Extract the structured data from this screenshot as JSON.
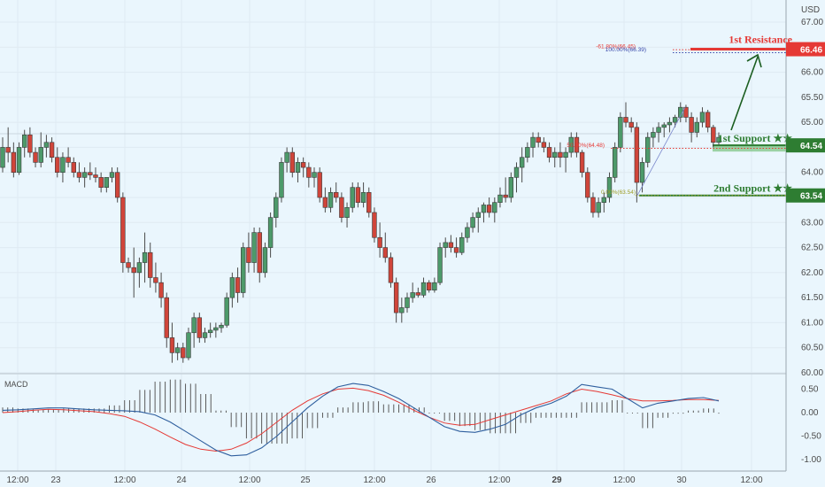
{
  "chart_data": {
    "type": "candlestick",
    "currency_label": "USD",
    "price_axis": {
      "ylim": [
        59.9,
        67.5
      ],
      "ticks": [
        "67.00",
        "66.50",
        "66.00",
        "65.50",
        "65.00",
        "64.50",
        "64.00",
        "63.50",
        "63.00",
        "62.50",
        "62.00",
        "61.50",
        "61.00",
        "60.50",
        "60.00"
      ]
    },
    "time_axis": {
      "labels": [
        "12:00",
        "23",
        "12:00",
        "24",
        "12:00",
        "25",
        "12:00",
        "26",
        "12:00",
        "29",
        "12:00",
        "30",
        "12:00"
      ],
      "bold": [
        "29"
      ]
    },
    "ohlc": [
      [
        64.1,
        64.7,
        64.0,
        64.5
      ],
      [
        64.5,
        64.9,
        64.2,
        64.4
      ],
      [
        64.4,
        64.6,
        63.9,
        64.0
      ],
      [
        64.0,
        64.6,
        63.95,
        64.5
      ],
      [
        64.5,
        64.85,
        64.3,
        64.75
      ],
      [
        64.75,
        64.9,
        64.3,
        64.4
      ],
      [
        64.4,
        64.5,
        64.1,
        64.2
      ],
      [
        64.2,
        64.8,
        64.1,
        64.5
      ],
      [
        64.5,
        64.75,
        64.3,
        64.6
      ],
      [
        64.6,
        64.7,
        64.2,
        64.3
      ],
      [
        64.3,
        64.5,
        63.9,
        64.0
      ],
      [
        64.0,
        64.4,
        63.8,
        64.3
      ],
      [
        64.3,
        64.5,
        64.1,
        64.2
      ],
      [
        64.2,
        64.3,
        63.9,
        64.0
      ],
      [
        64.0,
        64.2,
        63.8,
        63.9
      ],
      [
        63.9,
        64.1,
        63.7,
        64.0
      ],
      [
        64.0,
        64.2,
        63.85,
        63.95
      ],
      [
        63.95,
        64.1,
        63.8,
        63.9
      ],
      [
        63.9,
        64.0,
        63.6,
        63.7
      ],
      [
        63.7,
        63.9,
        63.6,
        63.9
      ],
      [
        63.9,
        64.1,
        63.8,
        64.0
      ],
      [
        64.0,
        64.1,
        63.4,
        63.5
      ],
      [
        63.5,
        63.6,
        62.0,
        62.2
      ],
      [
        62.2,
        62.3,
        62.0,
        62.1
      ],
      [
        62.1,
        62.5,
        61.5,
        62.0
      ],
      [
        62.0,
        62.3,
        61.7,
        62.2
      ],
      [
        62.2,
        62.8,
        61.8,
        62.4
      ],
      [
        62.4,
        62.6,
        61.7,
        61.9
      ],
      [
        61.9,
        62.2,
        61.6,
        61.8
      ],
      [
        61.8,
        62.0,
        61.3,
        61.5
      ],
      [
        61.5,
        61.6,
        60.5,
        60.7
      ],
      [
        60.7,
        61.0,
        60.2,
        60.4
      ],
      [
        60.4,
        60.6,
        60.25,
        60.5
      ],
      [
        60.5,
        60.6,
        60.2,
        60.3
      ],
      [
        60.3,
        60.9,
        60.25,
        60.8
      ],
      [
        60.8,
        61.2,
        60.5,
        61.1
      ],
      [
        61.1,
        61.2,
        60.6,
        60.7
      ],
      [
        60.7,
        60.9,
        60.6,
        60.8
      ],
      [
        60.8,
        61.0,
        60.7,
        60.85
      ],
      [
        60.85,
        61.0,
        60.7,
        60.9
      ],
      [
        60.9,
        61.0,
        60.8,
        60.95
      ],
      [
        60.95,
        61.6,
        60.9,
        61.5
      ],
      [
        61.5,
        62.0,
        61.3,
        61.9
      ],
      [
        61.9,
        62.1,
        61.4,
        61.6
      ],
      [
        61.6,
        62.6,
        61.5,
        62.5
      ],
      [
        62.5,
        62.8,
        62.0,
        62.2
      ],
      [
        62.2,
        62.9,
        62.0,
        62.8
      ],
      [
        62.8,
        62.9,
        61.8,
        62.0
      ],
      [
        62.0,
        62.6,
        61.9,
        62.5
      ],
      [
        62.5,
        63.2,
        62.3,
        63.1
      ],
      [
        63.1,
        63.6,
        62.9,
        63.5
      ],
      [
        63.5,
        64.3,
        63.4,
        64.2
      ],
      [
        64.2,
        64.5,
        64.0,
        64.4
      ],
      [
        64.4,
        64.5,
        63.9,
        64.0
      ],
      [
        64.0,
        64.3,
        63.8,
        64.2
      ],
      [
        64.2,
        64.3,
        63.9,
        64.1
      ],
      [
        64.1,
        64.2,
        63.7,
        63.9
      ],
      [
        63.9,
        64.1,
        63.7,
        64.0
      ],
      [
        64.0,
        64.1,
        63.4,
        63.5
      ],
      [
        63.5,
        63.7,
        63.2,
        63.3
      ],
      [
        63.3,
        63.7,
        63.2,
        63.6
      ],
      [
        63.6,
        63.8,
        63.4,
        63.5
      ],
      [
        63.5,
        63.6,
        63.0,
        63.1
      ],
      [
        63.1,
        63.4,
        62.9,
        63.3
      ],
      [
        63.3,
        63.8,
        63.2,
        63.7
      ],
      [
        63.7,
        63.8,
        63.3,
        63.4
      ],
      [
        63.4,
        63.8,
        63.3,
        63.6
      ],
      [
        63.6,
        63.7,
        63.1,
        63.2
      ],
      [
        63.2,
        63.3,
        62.6,
        62.7
      ],
      [
        62.7,
        63.0,
        62.3,
        62.5
      ],
      [
        62.5,
        62.8,
        62.2,
        62.3
      ],
      [
        62.3,
        62.4,
        61.7,
        61.8
      ],
      [
        61.8,
        61.9,
        61.0,
        61.2
      ],
      [
        61.2,
        61.5,
        61.0,
        61.3
      ],
      [
        61.3,
        61.6,
        61.2,
        61.5
      ],
      [
        61.5,
        61.8,
        61.4,
        61.6
      ],
      [
        61.6,
        61.7,
        61.5,
        61.55
      ],
      [
        61.55,
        61.9,
        61.5,
        61.8
      ],
      [
        61.8,
        61.85,
        61.6,
        61.65
      ],
      [
        61.65,
        61.9,
        61.6,
        61.8
      ],
      [
        61.8,
        62.6,
        61.75,
        62.5
      ],
      [
        62.5,
        62.7,
        62.3,
        62.6
      ],
      [
        62.6,
        62.75,
        62.4,
        62.5
      ],
      [
        62.5,
        62.7,
        62.3,
        62.4
      ],
      [
        62.4,
        62.8,
        62.35,
        62.7
      ],
      [
        62.7,
        63.0,
        62.6,
        62.9
      ],
      [
        62.9,
        63.2,
        62.8,
        63.1
      ],
      [
        63.1,
        63.3,
        62.8,
        63.2
      ],
      [
        63.2,
        63.4,
        63.0,
        63.35
      ],
      [
        63.35,
        63.5,
        63.1,
        63.2
      ],
      [
        63.2,
        63.5,
        63.0,
        63.4
      ],
      [
        63.4,
        63.7,
        63.3,
        63.55
      ],
      [
        63.55,
        63.9,
        63.4,
        63.5
      ],
      [
        63.5,
        64.0,
        63.4,
        63.9
      ],
      [
        63.9,
        64.2,
        63.6,
        64.1
      ],
      [
        64.1,
        64.5,
        63.8,
        64.3
      ],
      [
        64.3,
        64.6,
        64.2,
        64.5
      ],
      [
        64.5,
        64.8,
        64.3,
        64.7
      ],
      [
        64.7,
        64.8,
        64.5,
        64.6
      ],
      [
        64.6,
        64.7,
        64.4,
        64.5
      ],
      [
        64.5,
        64.6,
        64.2,
        64.3
      ],
      [
        64.3,
        64.5,
        64.1,
        64.4
      ],
      [
        64.4,
        64.6,
        64.1,
        64.3
      ],
      [
        64.3,
        64.5,
        64.0,
        64.4
      ],
      [
        64.4,
        64.8,
        64.3,
        64.7
      ],
      [
        64.7,
        64.8,
        64.3,
        64.4
      ],
      [
        64.4,
        64.45,
        63.9,
        64.0
      ],
      [
        64.0,
        64.1,
        63.4,
        63.5
      ],
      [
        63.5,
        63.6,
        63.1,
        63.2
      ],
      [
        63.2,
        63.5,
        63.1,
        63.4
      ],
      [
        63.4,
        63.6,
        63.2,
        63.5
      ],
      [
        63.5,
        64.0,
        63.4,
        63.9
      ],
      [
        63.9,
        64.6,
        63.8,
        64.5
      ],
      [
        64.5,
        65.2,
        64.4,
        65.1
      ],
      [
        65.1,
        65.4,
        64.9,
        65.0
      ],
      [
        65.0,
        65.1,
        64.8,
        64.9
      ],
      [
        64.9,
        65.0,
        63.4,
        63.8
      ],
      [
        63.8,
        64.3,
        63.6,
        64.2
      ],
      [
        64.2,
        64.8,
        64.1,
        64.7
      ],
      [
        64.7,
        64.9,
        64.5,
        64.8
      ],
      [
        64.8,
        65.0,
        64.6,
        64.9
      ],
      [
        64.9,
        65.0,
        64.7,
        64.95
      ],
      [
        64.95,
        65.1,
        64.8,
        65.0
      ],
      [
        65.0,
        65.15,
        64.9,
        65.1
      ],
      [
        65.1,
        65.4,
        65.0,
        65.3
      ],
      [
        65.3,
        65.35,
        65.0,
        65.1
      ],
      [
        65.1,
        65.2,
        64.6,
        64.8
      ],
      [
        64.8,
        65.1,
        64.7,
        65.0
      ],
      [
        65.0,
        65.3,
        64.9,
        65.2
      ],
      [
        65.2,
        65.25,
        64.8,
        64.9
      ],
      [
        64.9,
        64.95,
        64.5,
        64.6
      ],
      [
        64.6,
        64.8,
        64.55,
        64.7
      ]
    ],
    "fib_levels": [
      {
        "label": "-61.80%(66.45)",
        "value": 66.45,
        "color": "#e53935"
      },
      {
        "label": "100.00%(66.39)",
        "value": 66.39,
        "color": "#3949ab"
      },
      {
        "label": "50.00%(64.48)",
        "value": 64.48,
        "color": "#e53935"
      },
      {
        "label": "0.00%(63.54)",
        "value": 63.54,
        "color": "#9e9d24"
      }
    ],
    "levels": [
      {
        "name": "1st Resistance",
        "value": 66.46,
        "badge": "66.46",
        "color": "#e53935"
      },
      {
        "name": "1st Support ★★",
        "value": 64.54,
        "badge": "64.54",
        "color": "#2e7d32"
      },
      {
        "name": "2nd Support ★★",
        "value": 63.54,
        "badge": "63.54",
        "color": "#2e7d32"
      }
    ],
    "macd": {
      "label": "MACD",
      "ylim": [
        -1.05,
        0.75
      ],
      "ticks": [
        "0.50",
        "0.00",
        "-0.50",
        "-1.00"
      ],
      "macd_line": [
        0.05,
        0.06,
        0.08,
        0.1,
        0.1,
        0.08,
        0.06,
        0.05,
        0.04,
        0.02,
        -0.05,
        -0.2,
        -0.4,
        -0.6,
        -0.8,
        -0.92,
        -0.9,
        -0.75,
        -0.5,
        -0.2,
        0.1,
        0.35,
        0.55,
        0.62,
        0.58,
        0.45,
        0.3,
        0.1,
        -0.1,
        -0.3,
        -0.4,
        -0.42,
        -0.35,
        -0.25,
        -0.05,
        0.1,
        0.2,
        0.35,
        0.6,
        0.55,
        0.5,
        0.3,
        0.1,
        0.2,
        0.25,
        0.3,
        0.32,
        0.25
      ],
      "signal_line": [
        0.0,
        0.02,
        0.05,
        0.07,
        0.06,
        0.04,
        0.02,
        -0.02,
        -0.08,
        -0.2,
        -0.35,
        -0.52,
        -0.68,
        -0.78,
        -0.82,
        -0.78,
        -0.65,
        -0.45,
        -0.2,
        0.05,
        0.25,
        0.4,
        0.5,
        0.52,
        0.47,
        0.37,
        0.22,
        0.05,
        -0.1,
        -0.22,
        -0.27,
        -0.25,
        -0.15,
        -0.05,
        0.05,
        0.15,
        0.25,
        0.4,
        0.5,
        0.45,
        0.38,
        0.3,
        0.25,
        0.25,
        0.26,
        0.28,
        0.28,
        0.26
      ]
    }
  }
}
